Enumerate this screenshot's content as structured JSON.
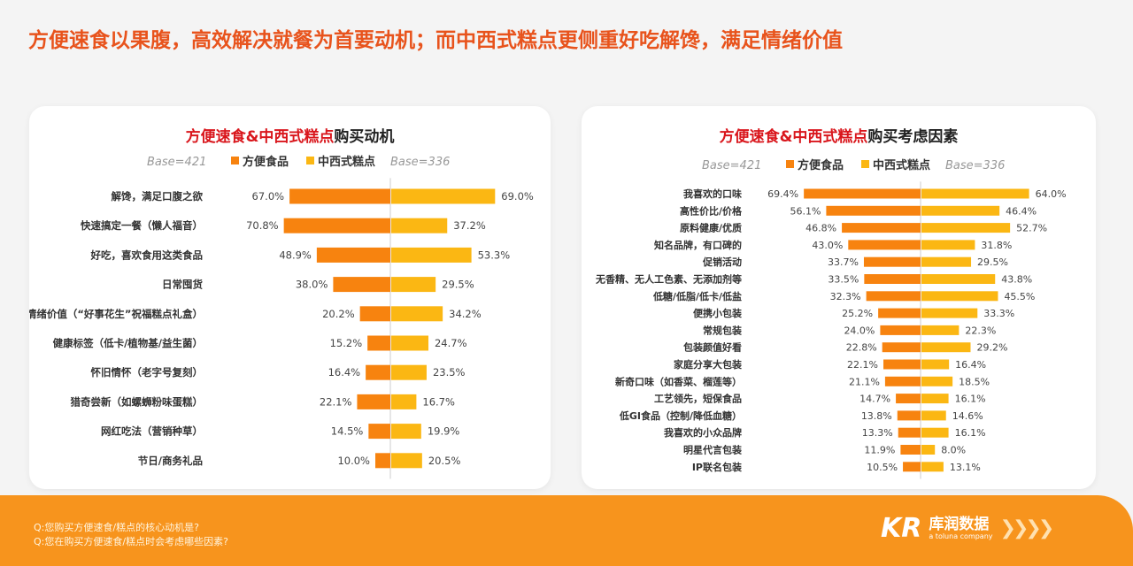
{
  "title": "方便速食以果腹，高效解决就餐为首要动机；而中西式糕点更侧重好吃解馋，满足情绪价值",
  "colors": {
    "convenience": "#f7830f",
    "pastry": "#fbb713",
    "title": "#e8531c",
    "footer": "#f7941d"
  },
  "chart_data": [
    {
      "type": "bar",
      "orientation": "diverging-horizontal",
      "title_highlight": "方便速食&中西式糕点",
      "title_rest": "购买动机",
      "legend": {
        "left_base": "Base=421",
        "right_base": "Base=336",
        "placement": "top"
      },
      "categories": [
        "解馋，满足口腹之欲",
        "快速搞定一餐（懒人福音）",
        "好吃，喜欢食用这类食品",
        "日常囤货",
        "情绪价值（“好事花生”祝福糕点礼盒）",
        "健康标签（低卡/植物基/益生菌）",
        "怀旧情怀（老字号复刻）",
        "猎奇尝新（如螺蛳粉味蛋糕）",
        "网红吃法（营销种草）",
        "节日/商务礼品"
      ],
      "series": [
        {
          "name": "方便食品",
          "values": [
            67.0,
            70.8,
            48.9,
            38.0,
            20.2,
            15.2,
            16.4,
            22.1,
            14.5,
            10.0
          ]
        },
        {
          "name": "中西式糕点",
          "values": [
            69.0,
            37.2,
            53.3,
            29.5,
            34.2,
            24.7,
            23.5,
            16.7,
            19.9,
            20.5
          ]
        }
      ],
      "unit": "%"
    },
    {
      "type": "bar",
      "orientation": "diverging-horizontal",
      "title_highlight": "方便速食&中西式糕点",
      "title_rest": "购买考虑因素",
      "legend": {
        "left_base": "Base=421",
        "right_base": "Base=336",
        "placement": "top"
      },
      "categories": [
        "我喜欢的口味",
        "高性价比/价格",
        "原料健康/优质",
        "知名品牌，有口碑的",
        "促销活动",
        "无香精、无人工色素、无添加剂等",
        "低糖/低脂/低卡/低盐",
        "便携小包装",
        "常规包装",
        "包装颜值好看",
        "家庭分享大包装",
        "新奇口味（如香菜、榴莲等）",
        "工艺领先，短保食品",
        "低GI食品（控制/降低血糖）",
        "我喜欢的小众品牌",
        "明星代言包装",
        "IP联名包装"
      ],
      "series": [
        {
          "name": "方便食品",
          "values": [
            69.4,
            56.1,
            46.8,
            43.0,
            33.7,
            33.5,
            32.3,
            25.2,
            24.0,
            22.8,
            22.1,
            21.1,
            14.7,
            13.8,
            13.3,
            11.9,
            10.5
          ]
        },
        {
          "name": "中西式糕点",
          "values": [
            64.0,
            46.4,
            52.7,
            31.8,
            29.5,
            43.8,
            45.5,
            33.3,
            22.3,
            29.2,
            16.4,
            18.5,
            16.1,
            14.6,
            16.1,
            8.0,
            13.1
          ]
        }
      ],
      "unit": "%"
    }
  ],
  "footer": {
    "q1": "Q:您购买方便速食/糕点的核心动机是?",
    "q2": "Q:您在购买方便速食/糕点时会考虑哪些因素?",
    "brand": "库润数据",
    "brand_sub": "a toluna company",
    "logo_mark": "KR"
  }
}
